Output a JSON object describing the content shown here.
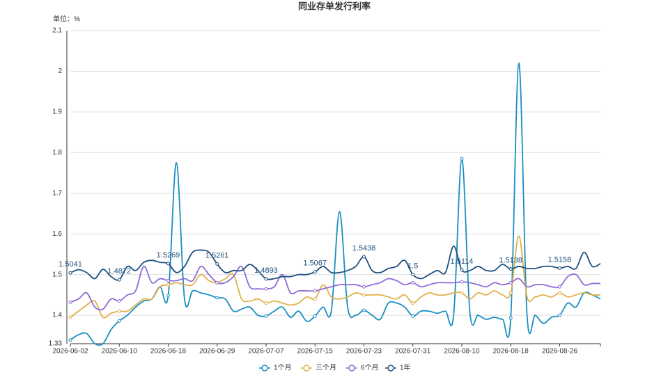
{
  "chart_data": {
    "type": "line",
    "title": "同业存单发行利率",
    "y_label": "单位：%",
    "categories": [
      "2026-06-02",
      null,
      null,
      null,
      null,
      null,
      "2026-06-10",
      null,
      null,
      null,
      null,
      null,
      "2026-06-18",
      null,
      null,
      null,
      null,
      null,
      "2026-06-29",
      null,
      null,
      null,
      null,
      null,
      "2026-07-07",
      null,
      null,
      null,
      null,
      null,
      "2026-07-15",
      null,
      null,
      null,
      null,
      null,
      "2026-07-23",
      null,
      null,
      null,
      null,
      null,
      "2026-07-31",
      null,
      null,
      null,
      null,
      null,
      "2026-08-10",
      null,
      null,
      null,
      null,
      null,
      "2026-08-18",
      null,
      null,
      null,
      null,
      null,
      "2026-08-26",
      null,
      null,
      null,
      null,
      null
    ],
    "ylim": [
      1.33,
      2.1
    ],
    "yticks": [
      1.33,
      1.4,
      1.5,
      1.6,
      1.7,
      1.8,
      1.9,
      2,
      2.1
    ],
    "grid": true,
    "smooth": true,
    "symbol_interval": 6,
    "legend": "bottom",
    "series": [
      {
        "name": "1个月",
        "color": "#1a8fc1",
        "values": [
          1.339,
          1.352,
          1.355,
          1.33,
          1.33,
          1.365,
          1.386,
          1.4,
          1.42,
          1.435,
          1.44,
          1.47,
          1.448,
          1.775,
          1.44,
          1.46,
          1.455,
          1.45,
          1.443,
          1.44,
          1.41,
          1.415,
          1.42,
          1.4,
          1.398,
          1.41,
          1.42,
          1.395,
          1.41,
          1.385,
          1.398,
          1.42,
          1.41,
          1.655,
          1.42,
          1.4,
          1.412,
          1.4,
          1.39,
          1.43,
          1.43,
          1.42,
          1.398,
          1.41,
          1.41,
          1.405,
          1.41,
          1.4,
          1.785,
          1.405,
          1.4,
          1.39,
          1.395,
          1.39,
          1.393,
          2.02,
          1.4,
          1.4,
          1.38,
          1.395,
          1.4,
          1.43,
          1.42,
          1.455,
          1.45,
          1.44
        ]
      },
      {
        "name": "三个月",
        "color": "#e0b04a",
        "values": [
          1.395,
          1.41,
          1.425,
          1.435,
          1.395,
          1.405,
          1.41,
          1.41,
          1.425,
          1.44,
          1.44,
          1.47,
          1.475,
          1.48,
          1.475,
          1.475,
          1.5,
          1.485,
          1.48,
          1.49,
          1.5,
          1.44,
          1.435,
          1.44,
          1.43,
          1.435,
          1.43,
          1.425,
          1.43,
          1.445,
          1.44,
          1.475,
          1.445,
          1.44,
          1.445,
          1.455,
          1.45,
          1.45,
          1.45,
          1.445,
          1.44,
          1.45,
          1.43,
          1.445,
          1.455,
          1.45,
          1.45,
          1.455,
          1.455,
          1.44,
          1.455,
          1.45,
          1.46,
          1.45,
          1.455,
          1.595,
          1.445,
          1.445,
          1.45,
          1.445,
          1.455,
          1.445,
          1.45,
          1.455,
          1.45,
          1.45
        ]
      },
      {
        "name": "6个月",
        "color": "#8e6bd6",
        "values": [
          1.432,
          1.44,
          1.455,
          1.42,
          1.415,
          1.44,
          1.435,
          1.45,
          1.46,
          1.52,
          1.48,
          1.49,
          1.485,
          1.485,
          1.49,
          1.485,
          1.52,
          1.5,
          1.48,
          1.48,
          1.495,
          1.52,
          1.47,
          1.465,
          1.465,
          1.47,
          1.5,
          1.455,
          1.46,
          1.46,
          1.46,
          1.465,
          1.47,
          1.475,
          1.475,
          1.475,
          1.47,
          1.475,
          1.48,
          1.49,
          1.485,
          1.475,
          1.48,
          1.47,
          1.475,
          1.48,
          1.48,
          1.48,
          1.482,
          1.48,
          1.475,
          1.47,
          1.48,
          1.475,
          1.48,
          1.49,
          1.47,
          1.475,
          1.475,
          1.47,
          1.47,
          1.495,
          1.5,
          1.475,
          1.478,
          1.478
        ]
      },
      {
        "name": "1年",
        "color": "#1d4f7e",
        "show_labels": true,
        "values": [
          1.5041,
          1.512,
          1.505,
          1.49,
          1.513,
          1.495,
          1.4872,
          1.52,
          1.51,
          1.53,
          1.535,
          1.53,
          1.5269,
          1.505,
          1.52,
          1.555,
          1.56,
          1.555,
          1.5261,
          1.505,
          1.51,
          1.51,
          1.525,
          1.51,
          1.4893,
          1.49,
          1.495,
          1.495,
          1.5,
          1.5,
          1.5067,
          1.52,
          1.505,
          1.505,
          1.51,
          1.52,
          1.5438,
          1.51,
          1.505,
          1.515,
          1.52,
          1.535,
          1.5,
          1.49,
          1.5,
          1.51,
          1.505,
          1.57,
          1.5114,
          1.51,
          1.52,
          1.51,
          1.51,
          1.525,
          1.5138,
          1.52,
          1.515,
          1.515,
          1.52,
          1.52,
          1.5158,
          1.52,
          1.515,
          1.555,
          1.52,
          1.527
        ]
      }
    ]
  }
}
